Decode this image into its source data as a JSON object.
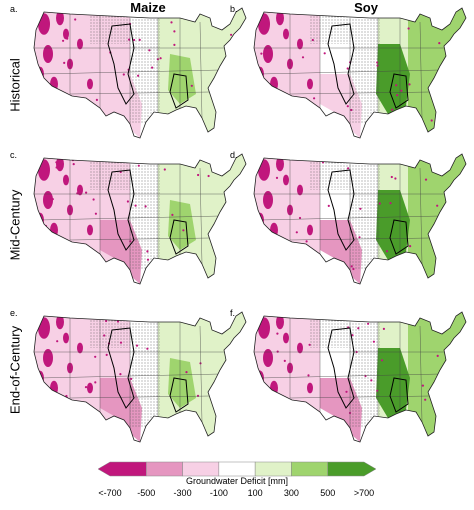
{
  "columns": {
    "maize": "Maize",
    "soy": "Soy"
  },
  "rows": {
    "historical": "Historical",
    "mid_century": "Mid-Century",
    "end_century": "End-of-Century"
  },
  "panels": [
    {
      "letter": "a.",
      "crop": "maize",
      "period": "historical"
    },
    {
      "letter": "b.",
      "crop": "soy",
      "period": "historical"
    },
    {
      "letter": "c.",
      "crop": "maize",
      "period": "mid_century"
    },
    {
      "letter": "d.",
      "crop": "soy",
      "period": "mid_century"
    },
    {
      "letter": "e.",
      "crop": "maize",
      "period": "end_century"
    },
    {
      "letter": "f.",
      "crop": "soy",
      "period": "end_century"
    }
  ],
  "legend": {
    "title": "Groundwater Deficit [mm]",
    "tick_labels": [
      "<-700",
      "-500",
      "-300",
      "-100",
      "100",
      "300",
      "500",
      ">700"
    ],
    "colors": [
      "#c0177c",
      "#e596c0",
      "#f7d0e5",
      "#ffffff",
      "#e0f2c8",
      "#9fd46e",
      "#4a9c2a"
    ]
  }
}
